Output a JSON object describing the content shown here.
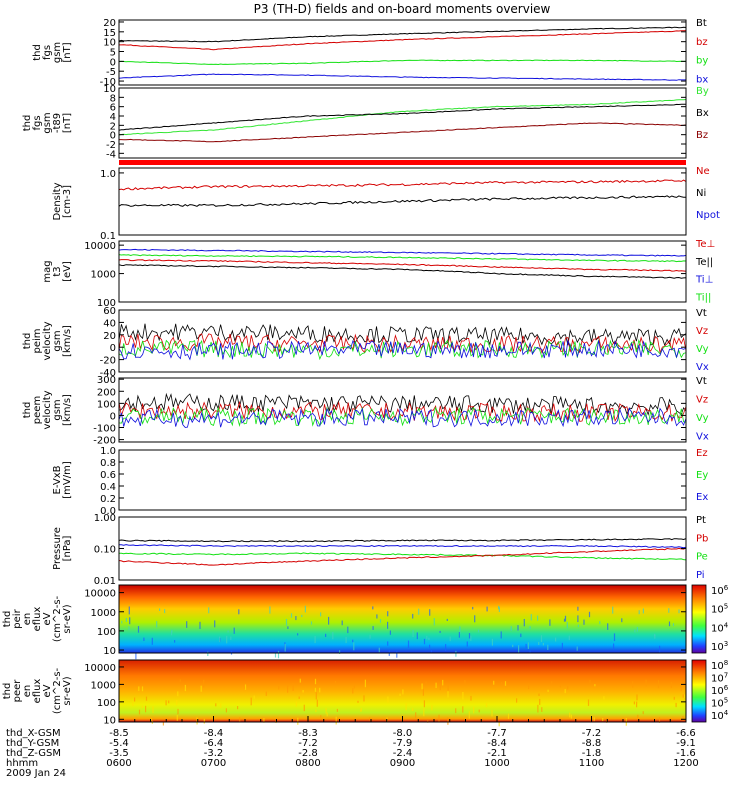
{
  "title": "P3 (TH-D) fields and on-board moments overview",
  "colors": {
    "black": "#000000",
    "red": "#d40000",
    "green": "#12e012",
    "blue": "#1010dd",
    "darkred": "#8b0000",
    "limegreen": "#32e632"
  },
  "chart_data": [
    {
      "type": "line",
      "name": "fgs",
      "ylabel_lines": [
        "thd",
        "fgs",
        "gsm",
        "[nT]"
      ],
      "yticks": [
        "20",
        "15",
        "10",
        "5",
        "0",
        "-5",
        "-10"
      ],
      "ylim": [
        -12,
        21
      ],
      "legend": [
        "Bt",
        "bz",
        "by",
        "bx"
      ],
      "legend_colors": [
        "black",
        "red",
        "green",
        "blue"
      ],
      "series": [
        {
          "name": "Bt",
          "color": "black",
          "values": [
            10.5,
            10.0,
            12.5,
            14.0,
            15.2,
            16.5,
            17.3
          ]
        },
        {
          "name": "bz",
          "color": "red",
          "values": [
            8.5,
            6.0,
            9.0,
            11.0,
            12.5,
            14.0,
            15.5
          ]
        },
        {
          "name": "by",
          "color": "green",
          "values": [
            0.0,
            -1.5,
            -1.0,
            0.5,
            0.5,
            0.5,
            0.0
          ]
        },
        {
          "name": "bx",
          "color": "blue",
          "values": [
            -8.5,
            -6.5,
            -7.0,
            -8.0,
            -8.5,
            -9.0,
            -9.5
          ]
        }
      ]
    },
    {
      "type": "line",
      "name": "fgs-t89",
      "ylabel_lines": [
        "thd",
        "fgs",
        "gsm",
        "-t89",
        "[nT]"
      ],
      "yticks": [
        "10",
        "8",
        "6",
        "4",
        "2",
        "0",
        "-2",
        "-4"
      ],
      "ylim": [
        -5,
        10
      ],
      "legend": [
        "By",
        "Bx",
        "Bz"
      ],
      "legend_colors": [
        "limegreen",
        "black",
        "darkred"
      ],
      "series": [
        {
          "name": "By",
          "color": "limegreen",
          "values": [
            0.0,
            1.0,
            3.0,
            5.0,
            6.0,
            6.5,
            7.5
          ]
        },
        {
          "name": "Bx",
          "color": "black",
          "values": [
            1.0,
            2.5,
            4.0,
            4.5,
            5.5,
            6.0,
            6.5
          ]
        },
        {
          "name": "Bz",
          "color": "darkred",
          "values": [
            -1.0,
            -1.5,
            -0.5,
            0.5,
            1.5,
            2.5,
            2.0
          ]
        }
      ]
    },
    {
      "type": "line",
      "name": "density",
      "ylabel_lines": [
        "Density",
        "[cm-3]"
      ],
      "log": true,
      "yticks": [
        "1.0",
        "0.1"
      ],
      "ylim": [
        0.1,
        1.2
      ],
      "legend": [
        "Ne",
        "Ni",
        "Npot"
      ],
      "legend_colors": [
        "red",
        "black",
        "blue"
      ],
      "series": [
        {
          "name": "Ne",
          "color": "red",
          "values": [
            0.55,
            0.6,
            0.62,
            0.65,
            0.7,
            0.72,
            0.75
          ]
        },
        {
          "name": "Ni",
          "color": "black",
          "values": [
            0.3,
            0.3,
            0.32,
            0.35,
            0.38,
            0.4,
            0.42
          ]
        }
      ]
    },
    {
      "type": "line",
      "name": "temperature",
      "ylabel_lines": [
        "mag",
        "t3",
        "[eV]"
      ],
      "log": true,
      "yticks": [
        "10000",
        "1000",
        "100"
      ],
      "ylim": [
        100,
        14000
      ],
      "legend": [
        "Te⊥",
        "Te||",
        "Ti⊥",
        "Ti||"
      ],
      "legend_colors": [
        "red",
        "black",
        "blue",
        "green"
      ],
      "series": [
        {
          "name": "Ti⊥",
          "color": "blue",
          "values": [
            7000,
            6500,
            6000,
            5500,
            5000,
            4500,
            4200
          ]
        },
        {
          "name": "Ti||",
          "color": "green",
          "values": [
            4500,
            4200,
            4000,
            3700,
            3300,
            2900,
            2700
          ]
        },
        {
          "name": "Te⊥",
          "color": "red",
          "values": [
            3000,
            2800,
            2400,
            2100,
            1700,
            1400,
            1250
          ]
        },
        {
          "name": "Te||",
          "color": "black",
          "values": [
            2000,
            1800,
            1600,
            1400,
            1000,
            800,
            700
          ]
        }
      ]
    },
    {
      "type": "line",
      "name": "peim velocity",
      "ylabel_lines": [
        "thd",
        "peim",
        "velocity",
        "gsm",
        "[km/s]"
      ],
      "yticks": [
        "60",
        "40",
        "20",
        "0",
        "-20",
        "-40"
      ],
      "ylim": [
        -40,
        60
      ],
      "legend": [
        "Vt",
        "Vz",
        "Vy",
        "Vx"
      ],
      "legend_colors": [
        "black",
        "red",
        "green",
        "blue"
      ],
      "series": [
        {
          "name": "Vt",
          "color": "black",
          "values": [
            25,
            25,
            22,
            20,
            18,
            17,
            17
          ]
        },
        {
          "name": "Vz",
          "color": "red",
          "values": [
            8,
            8,
            6,
            5,
            5,
            4,
            4
          ]
        },
        {
          "name": "Vy",
          "color": "green",
          "values": [
            -2,
            -3,
            -5,
            -4,
            -3,
            -3,
            -3
          ]
        },
        {
          "name": "Vx",
          "color": "blue",
          "values": [
            -5,
            -6,
            -4,
            -4,
            -4,
            -3,
            -3
          ]
        }
      ]
    },
    {
      "type": "line",
      "name": "peem velocity",
      "ylabel_lines": [
        "thd",
        "peem",
        "velocity",
        "gsm",
        "[km/s]"
      ],
      "yticks": [
        "300",
        "200",
        "100",
        "0",
        "-100",
        "-200"
      ],
      "ylim": [
        -220,
        310
      ],
      "legend": [
        "Vt",
        "Vz",
        "Vy",
        "Vx"
      ],
      "legend_colors": [
        "black",
        "red",
        "green",
        "blue"
      ],
      "series": [
        {
          "name": "Vt",
          "color": "black",
          "values": [
            110,
            105,
            100,
            95,
            90,
            80,
            75
          ]
        },
        {
          "name": "Vz",
          "color": "red",
          "values": [
            40,
            40,
            35,
            30,
            25,
            25,
            20
          ]
        },
        {
          "name": "Vy",
          "color": "green",
          "values": [
            -10,
            -10,
            -10,
            -5,
            -5,
            -5,
            -5
          ]
        },
        {
          "name": "Vx",
          "color": "blue",
          "values": [
            -30,
            -25,
            -20,
            -20,
            -20,
            -15,
            -15
          ]
        }
      ]
    },
    {
      "type": "line",
      "name": "E-VxB",
      "ylabel_lines": [
        "E-VxB",
        "[mV/m]"
      ],
      "yticks": [
        "1.0",
        "0.8",
        "0.6",
        "0.4",
        "0.2",
        "0.0"
      ],
      "ylim": [
        0,
        1
      ],
      "legend": [
        "Ez",
        "Ey",
        "Ex"
      ],
      "legend_colors": [
        "red",
        "green",
        "blue"
      ],
      "series": []
    },
    {
      "type": "line",
      "name": "pressure",
      "ylabel_lines": [
        "Pressure",
        "[nPa]"
      ],
      "log": true,
      "yticks": [
        "1.00",
        "0.10",
        "0.01"
      ],
      "ylim": [
        0.01,
        1.0
      ],
      "legend": [
        "Pt",
        "Pb",
        "Pe",
        "Pi"
      ],
      "legend_colors": [
        "black",
        "red",
        "green",
        "blue"
      ],
      "series": [
        {
          "name": "Pt",
          "color": "black",
          "values": [
            0.18,
            0.17,
            0.17,
            0.18,
            0.18,
            0.19,
            0.2
          ]
        },
        {
          "name": "Pi",
          "color": "blue",
          "values": [
            0.13,
            0.12,
            0.12,
            0.12,
            0.12,
            0.12,
            0.11
          ]
        },
        {
          "name": "Pe",
          "color": "green",
          "values": [
            0.07,
            0.065,
            0.07,
            0.065,
            0.06,
            0.05,
            0.045
          ]
        },
        {
          "name": "Pb",
          "color": "red",
          "values": [
            0.04,
            0.03,
            0.04,
            0.05,
            0.06,
            0.08,
            0.1
          ]
        }
      ]
    },
    {
      "type": "heatmap",
      "name": "peir spectrogram",
      "ylabel_lines": [
        "thd",
        "peir",
        "en",
        "eflux",
        "eV",
        "(cm^2-s-",
        "sr-eV)"
      ],
      "log": true,
      "yticks": [
        "10000",
        "1000",
        "100",
        "10"
      ],
      "ylim": [
        7,
        25000
      ],
      "colorbar_ticks": [
        "10^6",
        "10^5",
        "10^4",
        "10^3"
      ]
    },
    {
      "type": "heatmap",
      "name": "peer spectrogram",
      "ylabel_lines": [
        "thd",
        "peer",
        "en",
        "eflux",
        "eV",
        "(cm^2-s-",
        "sr-eV)"
      ],
      "log": true,
      "yticks": [
        "10000",
        "1000",
        "100",
        "10"
      ],
      "ylim": [
        7,
        25000
      ],
      "colorbar_ticks": [
        "10^8",
        "10^7",
        "10^6",
        "10^5",
        "10^4"
      ]
    }
  ],
  "x_axis": {
    "time_ticks": [
      "0600",
      "0700",
      "0800",
      "0900",
      "1000",
      "1100",
      "1200"
    ],
    "rows": [
      {
        "label": "thd_X-GSM",
        "values": [
          "-8.5",
          "-8.4",
          "-8.3",
          "-8.0",
          "-7.7",
          "-7.2",
          "-6.6"
        ]
      },
      {
        "label": "thd_Y-GSM",
        "values": [
          "-5.4",
          "-6.4",
          "-7.2",
          "-7.9",
          "-8.4",
          "-8.8",
          "-9.1"
        ]
      },
      {
        "label": "thd_Z-GSM",
        "values": [
          "-3.5",
          "-3.2",
          "-2.8",
          "-2.4",
          "-2.1",
          "-1.8",
          "-1.6"
        ]
      },
      {
        "label": "hhmm",
        "values": [
          "0600",
          "0700",
          "0800",
          "0900",
          "1000",
          "1100",
          "1200"
        ]
      }
    ],
    "date": "2009 Jan 24"
  }
}
